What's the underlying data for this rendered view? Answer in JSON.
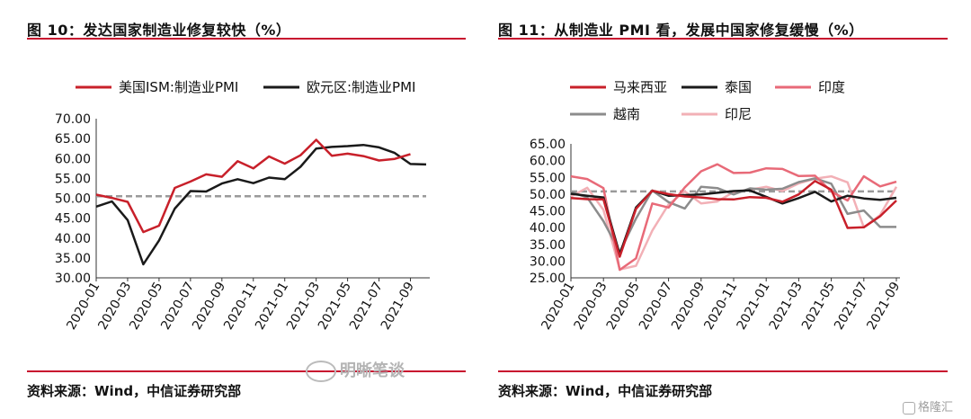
{
  "left": {
    "title": "图 10：发达国家制造业修复较快（%）",
    "source": "资料来源：Wind，中信证券研究部"
  },
  "right": {
    "title": "图 11：从制造业 PMI 看，发展中国家修复缓慢（%）",
    "source": "资料来源：Wind，中信证券研究部"
  },
  "watermark": {
    "text": "明晰笔谈",
    "icon": "wechat-icon"
  },
  "brand": {
    "text": "格隆汇",
    "icon": "gelonghui-logo-icon"
  },
  "chart_data": [
    {
      "type": "line",
      "ylim": [
        30,
        70
      ],
      "yticks": [
        "70.00",
        "65.00",
        "60.00",
        "55.00",
        "50.00",
        "45.00",
        "40.00",
        "35.00",
        "30.00"
      ],
      "xtick_labels": [
        "2020-01",
        "2020-03",
        "2020-05",
        "2020-07",
        "2020-09",
        "2020-11",
        "2021-01",
        "2021-03",
        "2021-05",
        "2021-07",
        "2021-09"
      ],
      "x": [
        "2020-01",
        "2020-02",
        "2020-03",
        "2020-04",
        "2020-05",
        "2020-06",
        "2020-07",
        "2020-08",
        "2020-09",
        "2020-10",
        "2020-11",
        "2020-12",
        "2021-01",
        "2021-02",
        "2021-03",
        "2021-04",
        "2021-05",
        "2021-06",
        "2021-07",
        "2021-08",
        "2021-09",
        "2021-10"
      ],
      "reference_line": 50.5,
      "legend_placement": "top",
      "series": [
        {
          "name": "美国ISM:制造业PMI",
          "color": "#c8202a",
          "values": [
            50.9,
            50.1,
            49.1,
            41.5,
            43.1,
            52.6,
            54.2,
            56.0,
            55.4,
            59.3,
            57.5,
            60.5,
            58.7,
            60.8,
            64.7,
            60.7,
            61.2,
            60.6,
            59.5,
            59.9,
            61.1,
            null
          ]
        },
        {
          "name": "欧元区:制造业PMI",
          "color": "#1a1a1a",
          "values": [
            47.9,
            49.2,
            44.5,
            33.4,
            39.4,
            47.4,
            51.8,
            51.7,
            53.7,
            54.8,
            53.8,
            55.2,
            54.8,
            57.9,
            62.5,
            62.9,
            63.1,
            63.4,
            62.8,
            61.4,
            58.6,
            58.5
          ]
        }
      ]
    },
    {
      "type": "line",
      "ylim": [
        25,
        65
      ],
      "yticks": [
        "65.00",
        "60.00",
        "55.00",
        "50.00",
        "45.00",
        "40.00",
        "35.00",
        "30.00",
        "25.00"
      ],
      "xtick_labels": [
        "2020-01",
        "2020-03",
        "2020-05",
        "2020-07",
        "2020-09",
        "2020-11",
        "2021-01",
        "2021-03",
        "2021-05",
        "2021-07",
        "2021-09"
      ],
      "x": [
        "2020-01",
        "2020-02",
        "2020-03",
        "2020-04",
        "2020-05",
        "2020-06",
        "2020-07",
        "2020-08",
        "2020-09",
        "2020-10",
        "2020-11",
        "2020-12",
        "2021-01",
        "2021-02",
        "2021-03",
        "2021-04",
        "2021-05",
        "2021-06",
        "2021-07",
        "2021-08",
        "2021-09"
      ],
      "reference_line": 50.8,
      "legend_placement": "top",
      "series": [
        {
          "name": "马来西亚",
          "color": "#c8202a",
          "values": [
            48.8,
            48.5,
            48.4,
            31.3,
            45.6,
            51.0,
            50.0,
            49.3,
            49.0,
            48.5,
            48.4,
            49.1,
            48.9,
            47.7,
            49.9,
            53.9,
            51.3,
            39.9,
            40.1,
            43.4,
            48.1
          ]
        },
        {
          "name": "泰国",
          "color": "#1a1a1a",
          "values": [
            50.1,
            49.5,
            49.0,
            32.0,
            46.0,
            51.0,
            49.5,
            49.7,
            49.9,
            50.4,
            50.9,
            51.1,
            49.2,
            47.2,
            48.8,
            50.7,
            47.8,
            49.5,
            48.7,
            48.3,
            48.9
          ]
        },
        {
          "name": "印度",
          "color": "#e86a78",
          "values": [
            55.3,
            54.5,
            51.8,
            27.4,
            30.8,
            47.2,
            46.0,
            52.0,
            56.8,
            58.9,
            56.3,
            56.4,
            57.7,
            57.5,
            55.4,
            55.5,
            50.8,
            48.1,
            55.3,
            52.3,
            53.7
          ]
        },
        {
          "name": "越南",
          "color": "#8c8c8c",
          "values": [
            50.6,
            49.0,
            41.9,
            32.7,
            42.7,
            51.1,
            47.6,
            45.7,
            52.2,
            51.8,
            49.9,
            51.7,
            51.3,
            51.6,
            53.6,
            54.7,
            53.1,
            44.1,
            45.1,
            40.2,
            40.2
          ]
        },
        {
          "name": "印尼",
          "color": "#f2b0b6",
          "values": [
            49.3,
            51.9,
            45.3,
            27.5,
            28.6,
            39.1,
            46.9,
            50.8,
            47.2,
            47.8,
            50.6,
            51.3,
            52.2,
            50.9,
            53.2,
            54.6,
            55.3,
            53.5,
            40.1,
            43.7,
            52.2
          ]
        }
      ]
    }
  ]
}
